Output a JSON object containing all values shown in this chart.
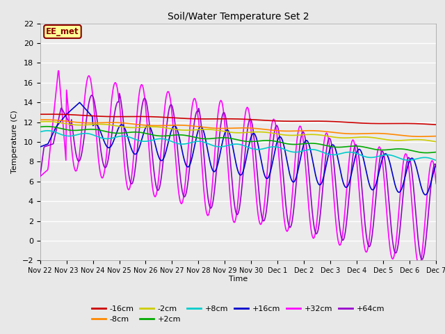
{
  "title": "Soil/Water Temperature Set 2",
  "xlabel": "Time",
  "ylabel": "Temperature (C)",
  "ylim": [
    -2,
    22
  ],
  "yticks": [
    -2,
    0,
    2,
    4,
    6,
    8,
    10,
    12,
    14,
    16,
    18,
    20,
    22
  ],
  "x_labels": [
    "Nov 22",
    "Nov 23",
    "Nov 24",
    "Nov 25",
    "Nov 26",
    "Nov 27",
    "Nov 28",
    "Nov 29",
    "Nov 30",
    "Dec 1",
    "Dec 2",
    "Dec 3",
    "Dec 4",
    "Dec 5",
    "Dec 6",
    "Dec 7"
  ],
  "annotation_text": "EE_met",
  "annotation_color": "#8B0000",
  "annotation_bg": "#FFFF99",
  "colors": {
    "m16": "#CC0000",
    "m8": "#FF8800",
    "m2": "#CCCC00",
    "p2": "#00AA00",
    "p8": "#00CCCC",
    "p16": "#0000CC",
    "p32": "#FF00FF",
    "p64": "#9900CC"
  },
  "legend_labels": [
    "-16cm",
    "-8cm",
    "-2cm",
    "+2cm",
    "+8cm",
    "+16cm",
    "+32cm",
    "+64cm"
  ],
  "bg_color": "#E8E8E8",
  "plot_bg": "#EBEBEB"
}
